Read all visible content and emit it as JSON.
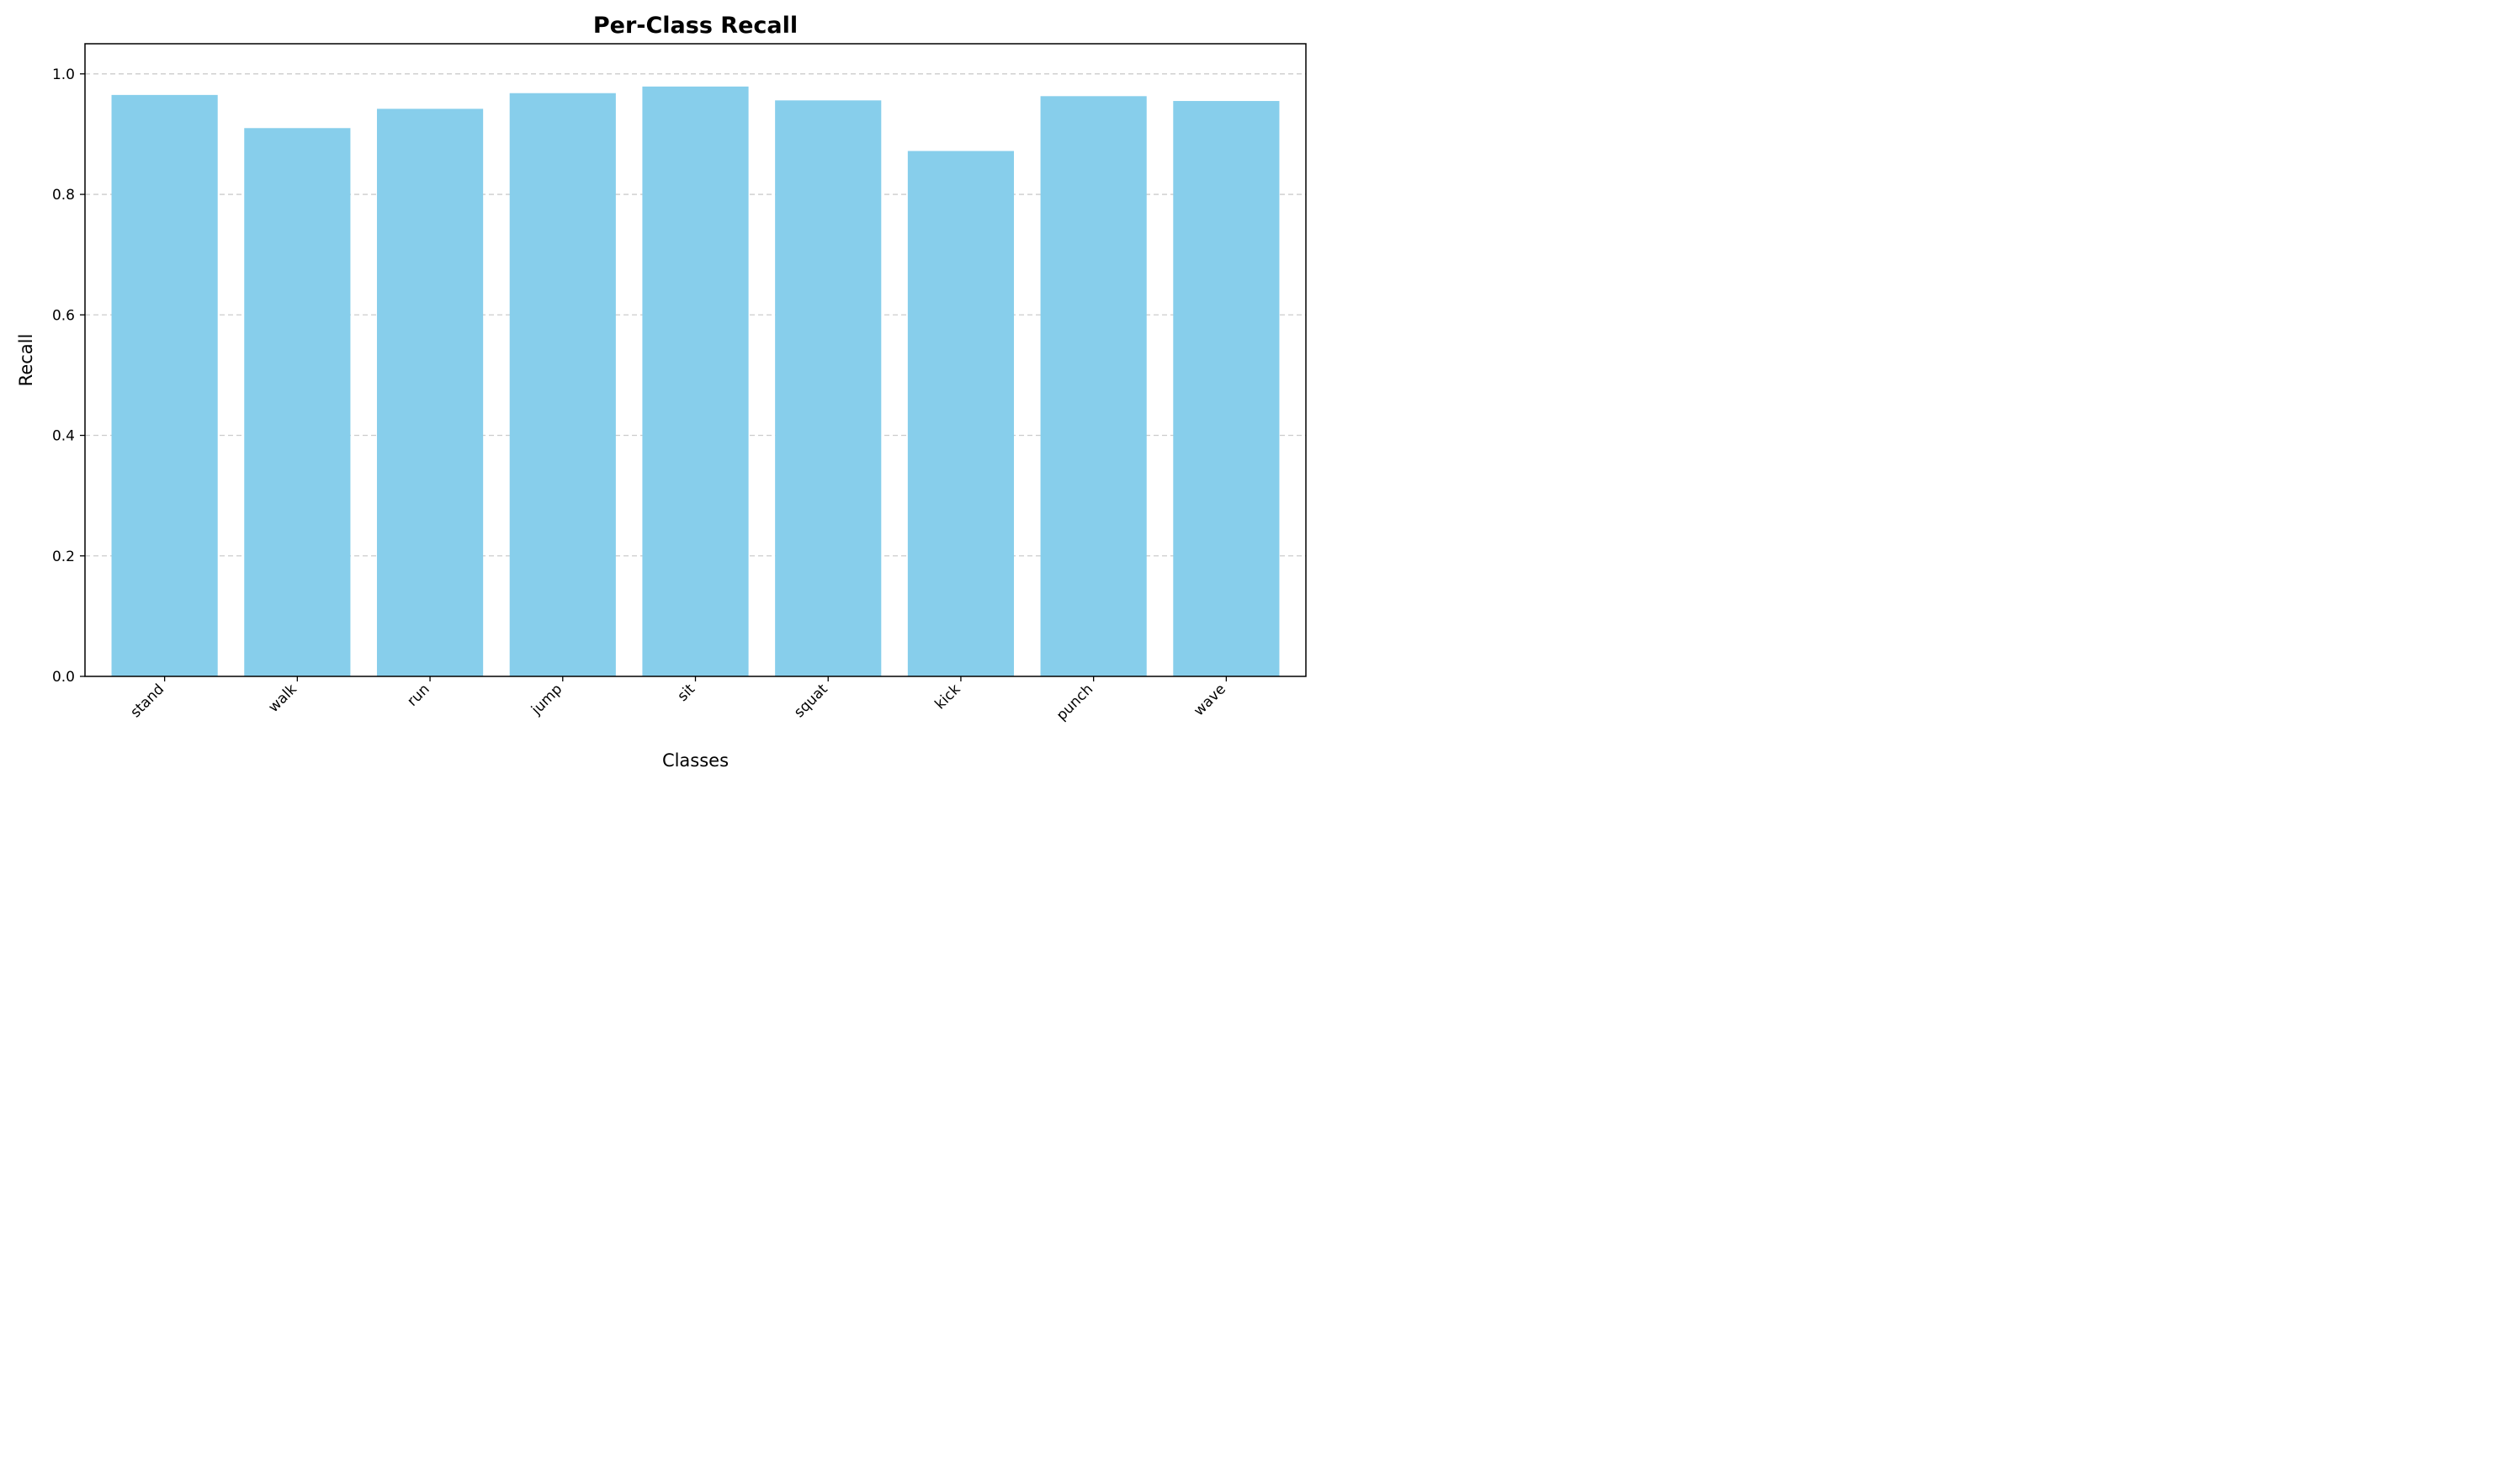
{
  "chart_data": {
    "type": "bar",
    "title": "Per-Class Recall",
    "xlabel": "Classes",
    "ylabel": "Recall",
    "categories": [
      "stand",
      "walk",
      "run",
      "jump",
      "sit",
      "squat",
      "kick",
      "punch",
      "wave"
    ],
    "values": [
      0.965,
      0.91,
      0.942,
      0.968,
      0.979,
      0.956,
      0.872,
      0.963,
      0.955
    ],
    "ylim": [
      0,
      1.05
    ],
    "yticks": [
      "0.0",
      "0.2",
      "0.4",
      "0.6",
      "0.8",
      "1.0"
    ],
    "grid": "horizontal-dashed",
    "bar_color": "#87ceeb",
    "grid_color": "#cccccc"
  }
}
